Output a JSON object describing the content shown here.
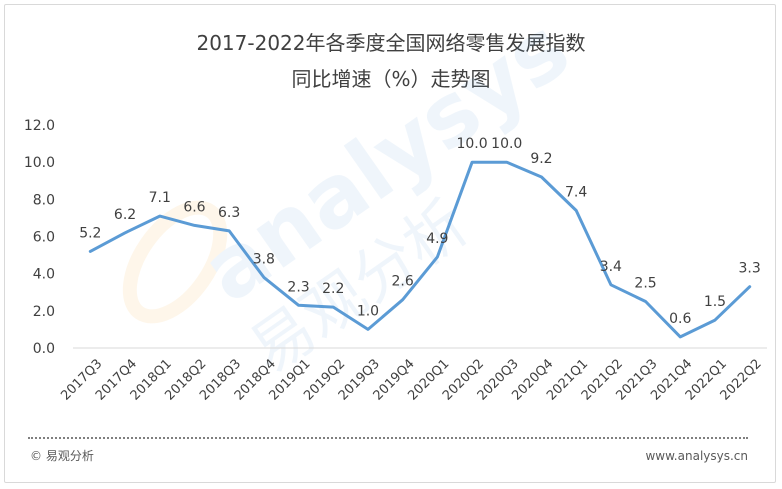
{
  "title_line1": "2017-2022年各季度全国网络零售发展指数",
  "title_line2": "同比增速（%）走势图",
  "footer": {
    "copyright_symbol": "©",
    "source": "易观分析",
    "url": "www.analysys.cn"
  },
  "watermark": {
    "text_en": "analysys",
    "text_cn": "易观分析"
  },
  "colors": {
    "line": "#5b9bd5",
    "axis": "#d9d9d9",
    "text": "#404040"
  },
  "chart_data": {
    "type": "line",
    "categories": [
      "2017Q3",
      "2017Q4",
      "2018Q1",
      "2018Q2",
      "2018Q3",
      "2018Q4",
      "2019Q1",
      "2019Q2",
      "2019Q3",
      "2019Q4",
      "2020Q1",
      "2020Q2",
      "2020Q3",
      "2020Q4",
      "2021Q1",
      "2021Q2",
      "2021Q3",
      "2021Q4",
      "2022Q1",
      "2022Q2"
    ],
    "series": [
      {
        "values": [
          5.2,
          6.2,
          7.1,
          6.6,
          6.3,
          3.8,
          2.3,
          2.2,
          1.0,
          2.6,
          4.9,
          10.0,
          10.0,
          9.2,
          7.4,
          3.4,
          2.5,
          0.6,
          1.5,
          3.3
        ]
      }
    ],
    "data_labels": [
      "5.2",
      "6.2",
      "7.1",
      "6.6",
      "6.3",
      "3.8",
      "2.3",
      "2.2",
      "1.0",
      "2.6",
      "4.9",
      "10.0",
      "10.0",
      "9.2",
      "7.4",
      "3.4",
      "2.5",
      "0.6",
      "1.5",
      "3.3"
    ],
    "yticks": [
      "0.0",
      "2.0",
      "4.0",
      "6.0",
      "8.0",
      "10.0",
      "12.0"
    ],
    "ylim": [
      0,
      12
    ],
    "grid": false,
    "legend": "none"
  }
}
